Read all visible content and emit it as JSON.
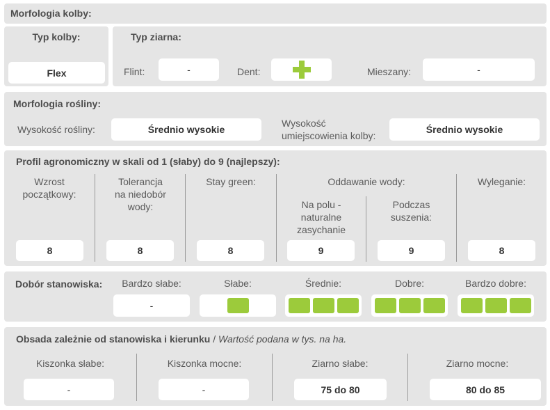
{
  "s1": {
    "title": "Morfologia kolby:",
    "typ_kolby_label": "Typ kolby:",
    "typ_kolby_value": "Flex",
    "typ_ziarna_label": "Typ ziarna:",
    "flint_label": "Flint:",
    "flint_value": "-",
    "dent_label": "Dent:",
    "dent_icon": "plus-icon",
    "mieszany_label": "Mieszany:",
    "mieszany_value": "-"
  },
  "s2": {
    "title": "Morfologia rośliny:",
    "wysokosc_label": "Wysokość rośliny:",
    "wysokosc_value": "Średnio wysokie",
    "kolba_label_line1": "Wysokość",
    "kolba_label_line2": "umiejscowienia kolby:",
    "kolba_value": "Średnio wysokie"
  },
  "s3": {
    "title": "Profil agronomiczny w skali od 1 (słaby) do 9 (najlepszy):",
    "wzrost_l1": "Wzrost",
    "wzrost_l2": "początkowy:",
    "wzrost_value": "8",
    "tol_l1": "Tolerancja",
    "tol_l2": "na niedobór",
    "tol_l3": "wody:",
    "tol_value": "8",
    "stay_label": "Stay green:",
    "stay_value": "8",
    "oddawanie_label": "Oddawanie wody:",
    "polu_l1": "Na polu -",
    "polu_l2": "naturalne",
    "polu_l3": "zasychanie",
    "polu_value": "9",
    "susz_l1": "Podczas",
    "susz_l2": "suszenia:",
    "susz_value": "9",
    "wyl_label": "Wyleganie:",
    "wyl_value": "8"
  },
  "s4": {
    "title": "Dobór stanowiska:",
    "bs_label": "Bardzo słabe:",
    "bs_value": "-",
    "sl_label": "Słabe:",
    "sr_label": "Średnie:",
    "do_label": "Dobre:",
    "bd_label": "Bardzo dobre:",
    "levels": {
      "slabe": 1,
      "srednie": 3,
      "dobre": 3,
      "bardzo_dobre": 3
    },
    "fill_color": "#9ccb3b"
  },
  "s5": {
    "title_bold": "Obsada zależnie od stanowiska i kierunku",
    "title_sep": " / ",
    "title_italic": "Wartość podana w tys. na ha.",
    "ks_label": "Kiszonka słabe:",
    "ks_value": "-",
    "km_label": "Kiszonka mocne:",
    "km_value": "-",
    "zs_label": "Ziarno słabe:",
    "zs_value": "75 do 80",
    "zm_label": "Ziarno mocne:",
    "zm_value": "80 do 85"
  }
}
